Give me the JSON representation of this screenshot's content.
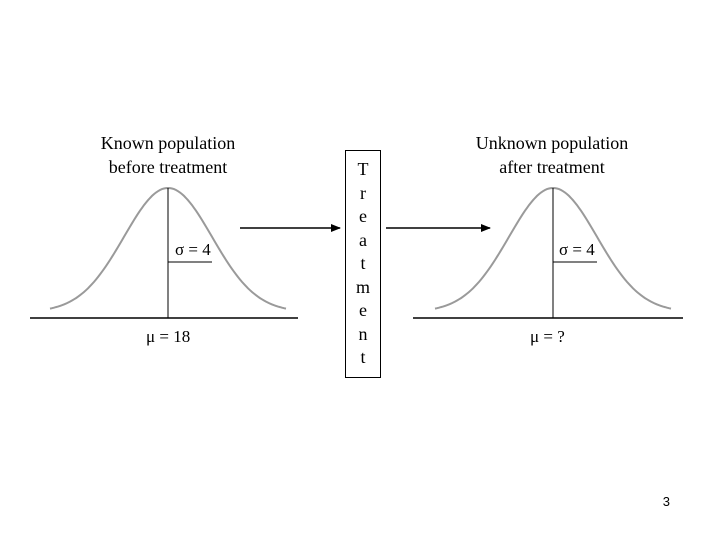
{
  "left_panel": {
    "title_line1": "Known population",
    "title_line2": "before treatment",
    "sigma_label": "σ = 4",
    "mu_label": "μ = 18"
  },
  "right_panel": {
    "title_line1": "Unknown population",
    "title_line2": "after treatment",
    "sigma_label": "σ = 4",
    "mu_label": "μ = ?"
  },
  "treatment": {
    "letters": [
      "T",
      "r",
      "e",
      "a",
      "t",
      "m",
      "e",
      "n",
      "t"
    ]
  },
  "page_number": "3",
  "colors": {
    "curve": "#9a9a9a",
    "line": "#000000",
    "background": "#ffffff"
  }
}
